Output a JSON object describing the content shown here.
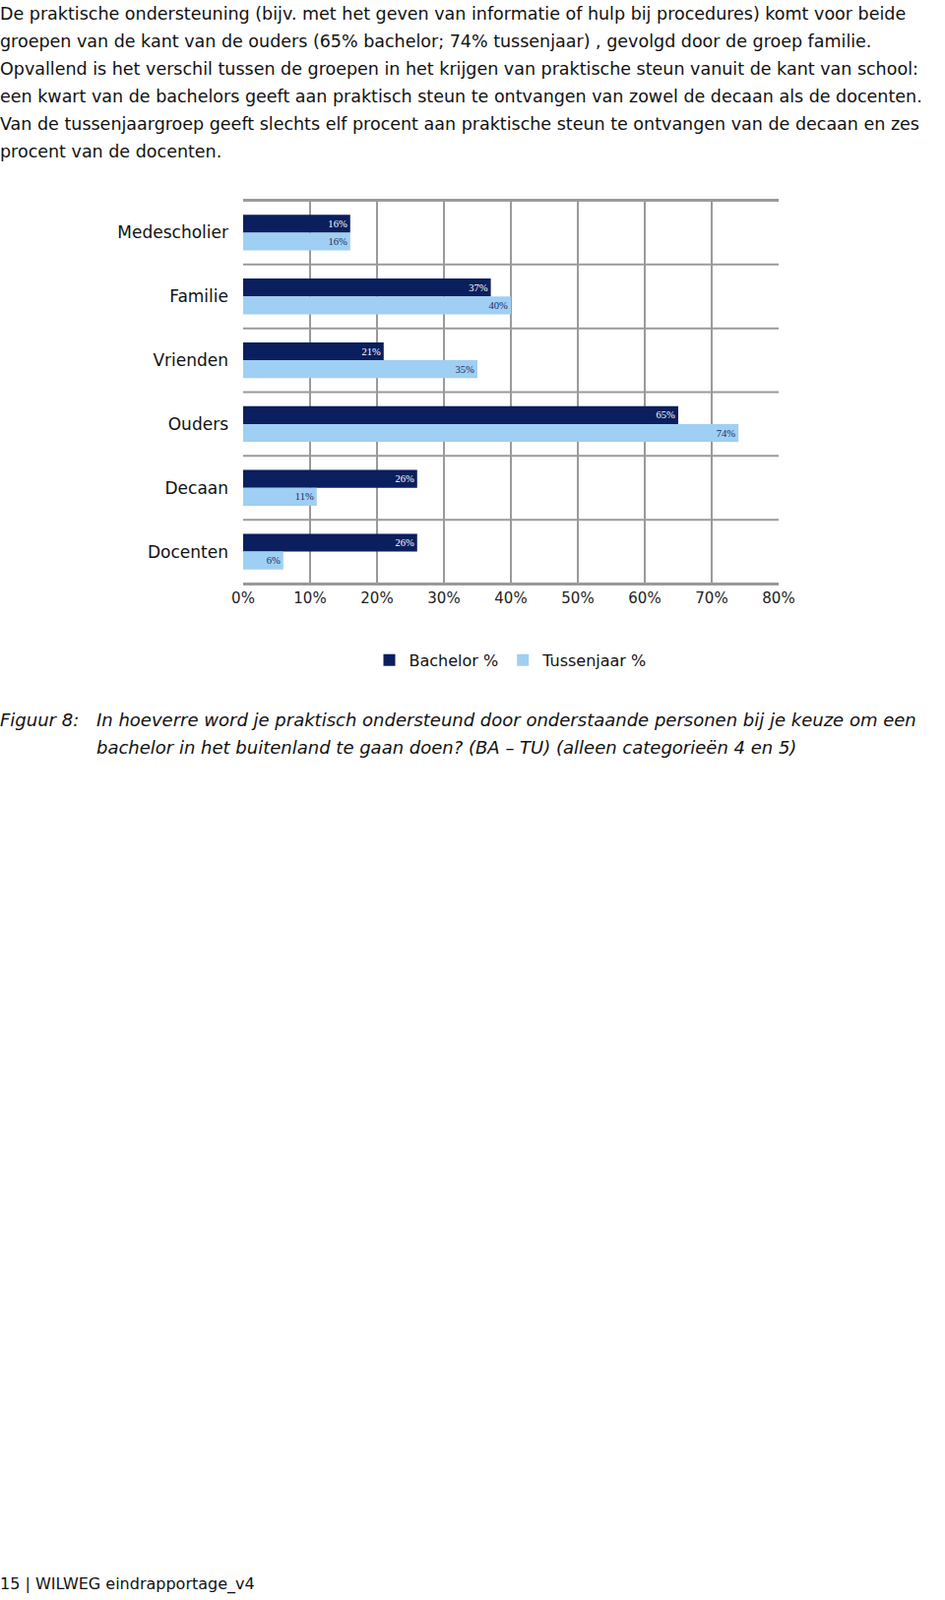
{
  "paragraph": "De praktische ondersteuning (bijv. met het geven van informatie of hulp bij procedures) komt voor beide groepen van de kant van de ouders (65% bachelor; 74% tussenjaar) , gevolgd door de groep familie. Opvallend is het verschil tussen de groepen in het krijgen van praktische steun vanuit de kant van school: een kwart van de bachelors geeft aan praktisch steun te ontvangen van zowel de decaan als de docenten. Van de tussenjaargroep geeft slechts elf procent aan praktische steun te ontvangen van de decaan en zes procent van de docenten.",
  "chart_data": {
    "type": "bar",
    "orientation": "horizontal",
    "categories": [
      "Medescholier",
      "Familie",
      "Vrienden",
      "Ouders",
      "Decaan",
      "Docenten"
    ],
    "series": [
      {
        "name": "Bachelor %",
        "color": "#0b1f5e",
        "values": [
          16,
          37,
          21,
          65,
          26,
          26
        ],
        "value_labels": [
          "16%",
          "37%",
          "21%",
          "65%",
          "26%",
          "26%"
        ]
      },
      {
        "name": "Tussenjaar %",
        "color": "#9fcff3",
        "values": [
          16,
          40,
          35,
          74,
          11,
          6
        ],
        "value_labels": [
          "16%",
          "40%",
          "35%",
          "74%",
          "11%",
          "6%"
        ]
      }
    ],
    "xlim": [
      0,
      80
    ],
    "xticks": [
      {
        "value": 0,
        "label": "0%"
      },
      {
        "value": 10,
        "label": "10%"
      },
      {
        "value": 20,
        "label": "20%"
      },
      {
        "value": 30,
        "label": "30%"
      },
      {
        "value": 40,
        "label": "40%"
      },
      {
        "value": 50,
        "label": "50%"
      },
      {
        "value": 60,
        "label": "60%"
      },
      {
        "value": 70,
        "label": "70%"
      },
      {
        "value": 80,
        "label": "80%"
      }
    ],
    "grid": true,
    "legend": "bottom",
    "data_labels": true
  },
  "caption": {
    "label": "Figuur 8:",
    "text": "In hoeverre word je praktisch ondersteund door onderstaande personen bij je keuze om een bachelor in het buitenland te gaan doen? (BA – TU) (alleen categorieën 4 en 5)"
  },
  "footer": "15 |  WILWEG eindrapportage_v4"
}
